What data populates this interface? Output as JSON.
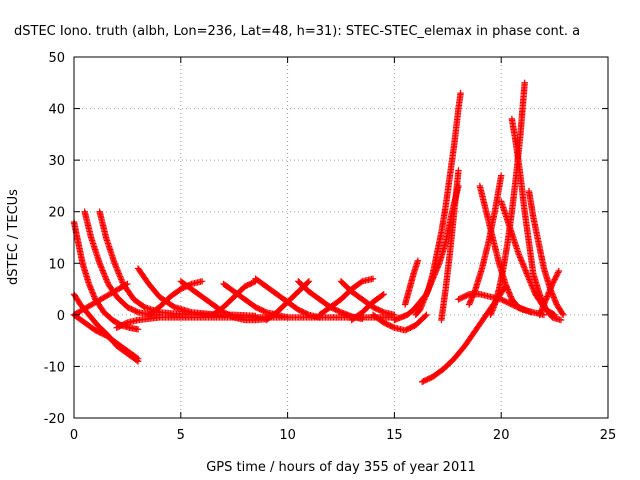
{
  "chart_data": {
    "type": "scatter",
    "title": "dSTEC Iono. truth (albh, Lon=236, Lat=48, h=31): STEC-STEC_elemax in phase cont. a",
    "xlabel": "GPS time / hours of day 355 of year 2011",
    "ylabel": "dSTEC  / TECUs",
    "xlim": [
      0,
      25
    ],
    "ylim": [
      -20,
      50
    ],
    "xticks": [
      0,
      5,
      10,
      15,
      20,
      25
    ],
    "yticks": [
      -20,
      -10,
      0,
      10,
      20,
      30,
      40,
      50
    ],
    "xtick_labels": [
      "0",
      "5",
      "10",
      "15",
      "20",
      "25"
    ],
    "ytick_labels": [
      "-20",
      "-10",
      "0",
      "10",
      "20",
      "30",
      "40",
      "50"
    ],
    "grid": true,
    "marker": "plus",
    "color": "#ff0000",
    "series": [
      {
        "x": [
          0.0,
          0.2,
          0.4,
          0.7,
          1.0,
          1.4,
          1.8,
          2.2,
          2.6,
          3.0
        ],
        "y": [
          18,
          14,
          10,
          6,
          3,
          0.5,
          -1,
          -2,
          -2.5,
          -2.8
        ]
      },
      {
        "x": [
          0.0,
          0.3,
          0.7,
          1.1,
          1.6,
          2.0,
          2.5,
          3.0
        ],
        "y": [
          4,
          2,
          0,
          -2,
          -4,
          -6,
          -7.5,
          -9
        ]
      },
      {
        "x": [
          0.0,
          0.5,
          1.0,
          1.5,
          2.0,
          2.5,
          3.0
        ],
        "y": [
          0,
          -1.5,
          -3,
          -4,
          -5.5,
          -7,
          -8.5
        ]
      },
      {
        "x": [
          0.5,
          0.8,
          1.2,
          1.6,
          2.0,
          2.5,
          3.0,
          3.5,
          4.0
        ],
        "y": [
          20,
          15,
          10,
          6,
          3.5,
          1.5,
          0.5,
          0.1,
          0
        ]
      },
      {
        "x": [
          1.2,
          1.5,
          1.9,
          2.3,
          2.8,
          3.3,
          4.0,
          4.8,
          5.5,
          6.5
        ],
        "y": [
          20,
          15,
          10,
          6,
          3,
          1.5,
          0.5,
          0.2,
          0.1,
          0
        ]
      },
      {
        "x": [
          0.0,
          0.5,
          1.0,
          1.5,
          2.0,
          2.5
        ],
        "y": [
          0,
          1.2,
          2.4,
          3.6,
          4.8,
          6
        ]
      },
      {
        "x": [
          3.0,
          3.5,
          4.0,
          4.7,
          5.5,
          6.5,
          7.5,
          8.5
        ],
        "y": [
          9,
          6,
          3.5,
          1.5,
          0.5,
          0.1,
          0,
          -0.2
        ]
      },
      {
        "x": [
          3.5,
          4.0,
          4.5,
          5.0,
          5.5,
          6.0
        ],
        "y": [
          0,
          1.5,
          3.5,
          5,
          6,
          6.5
        ]
      },
      {
        "x": [
          5.0,
          5.5,
          6.0,
          6.5,
          7.0,
          7.5,
          8.0,
          8.5,
          9.0
        ],
        "y": [
          6.5,
          5,
          3.5,
          2,
          0.5,
          -0.5,
          -1,
          -1,
          -0.8
        ]
      },
      {
        "x": [
          6.5,
          7.0,
          7.5,
          8.0,
          8.5
        ],
        "y": [
          0,
          1.5,
          3.5,
          5.5,
          6.5
        ]
      },
      {
        "x": [
          7.0,
          7.5,
          8.0,
          8.5,
          9.0,
          9.5,
          10.0
        ],
        "y": [
          6,
          4.5,
          3,
          1.5,
          0.5,
          0,
          -0.5
        ]
      },
      {
        "x": [
          8.5,
          9.0,
          9.5,
          10.0,
          10.5,
          11.0,
          11.5
        ],
        "y": [
          7,
          5.5,
          4,
          2.5,
          1,
          0,
          -0.5
        ]
      },
      {
        "x": [
          9.0,
          9.5,
          10.0,
          10.5,
          11.0
        ],
        "y": [
          -1,
          0.5,
          2.5,
          4.5,
          6.5
        ]
      },
      {
        "x": [
          10.5,
          11.0,
          11.5,
          12.0,
          12.5,
          13.0,
          13.5
        ],
        "y": [
          6.5,
          4.5,
          3,
          1.5,
          0.5,
          -0.3,
          -0.8
        ]
      },
      {
        "x": [
          11.5,
          12.0,
          12.5,
          13.0,
          13.5,
          14.0
        ],
        "y": [
          0,
          1.5,
          3,
          5,
          6.5,
          7
        ]
      },
      {
        "x": [
          12.5,
          13.0,
          13.5,
          14.0,
          14.5,
          15.0
        ],
        "y": [
          6.5,
          4.5,
          3,
          1.5,
          0.5,
          0
        ]
      },
      {
        "x": [
          13.0,
          13.5,
          14.0,
          14.5
        ],
        "y": [
          -1,
          0.5,
          2.5,
          4
        ]
      },
      {
        "x": [
          14.0,
          14.5,
          15.0,
          15.5,
          16.0,
          16.5
        ],
        "y": [
          0,
          -1.5,
          -2.5,
          -3,
          -2,
          0
        ]
      },
      {
        "x": [
          2.0,
          2.5,
          3.0,
          4.0,
          5.0,
          6.0,
          8.0,
          10.0,
          12.0,
          14.0,
          15.0
        ],
        "y": [
          -2.5,
          -1.5,
          -1,
          -0.5,
          -0.5,
          -0.5,
          -0.5,
          -0.5,
          -0.5,
          -0.5,
          -0.5
        ]
      },
      {
        "x": [
          15.0,
          15.3,
          15.6,
          15.9,
          16.2,
          16.5,
          16.8,
          17.1,
          17.4,
          17.7,
          18.0
        ],
        "y": [
          -1,
          -0.5,
          0,
          1,
          2.5,
          4,
          7,
          10,
          14,
          20,
          25
        ]
      },
      {
        "x": [
          15.5,
          15.7,
          15.9,
          16.1
        ],
        "y": [
          2,
          5,
          8,
          10.5
        ]
      },
      {
        "x": [
          16.0,
          16.2,
          16.4,
          16.6,
          16.8,
          17.0,
          17.2,
          17.4,
          17.6,
          17.8,
          18.0,
          18.1
        ],
        "y": [
          0,
          1,
          3,
          5,
          8,
          12,
          16,
          21,
          27,
          33,
          40,
          43
        ]
      },
      {
        "x": [
          17.2,
          17.4,
          17.6,
          17.8,
          18.0
        ],
        "y": [
          -1,
          5,
          12,
          20,
          28
        ]
      },
      {
        "x": [
          16.3,
          16.8,
          17.3,
          17.8,
          18.3,
          18.8,
          19.3,
          19.8,
          20.2
        ],
        "y": [
          -13,
          -12,
          -10.5,
          -8.5,
          -6,
          -3,
          0,
          3,
          5.5
        ]
      },
      {
        "x": [
          18.5,
          18.8,
          19.1,
          19.4,
          19.7,
          20.0
        ],
        "y": [
          2,
          5,
          9,
          14,
          20,
          27
        ]
      },
      {
        "x": [
          19.5,
          19.7,
          19.9,
          20.1,
          20.3,
          20.5,
          20.7,
          20.9,
          21.0,
          21.1
        ],
        "y": [
          0,
          2,
          5,
          9,
          14,
          20,
          27,
          35,
          40,
          45
        ]
      },
      {
        "x": [
          19.0,
          19.3,
          19.6,
          19.9,
          20.2,
          20.5,
          20.8,
          21.1,
          21.4
        ],
        "y": [
          25,
          20,
          15,
          10,
          6,
          3,
          1.5,
          1,
          0.5
        ]
      },
      {
        "x": [
          20.5,
          20.7,
          20.9,
          21.1,
          21.3,
          21.5,
          21.8,
          22.1,
          22.5
        ],
        "y": [
          38,
          33,
          27,
          20,
          14,
          8,
          4,
          1,
          0
        ]
      },
      {
        "x": [
          21.3,
          21.5,
          21.8,
          22.0,
          22.3,
          22.6,
          22.9
        ],
        "y": [
          24,
          19,
          13,
          9,
          5,
          2,
          0
        ]
      },
      {
        "x": [
          20.0,
          20.4,
          20.8,
          21.2,
          21.6,
          22.0,
          22.4,
          22.8
        ],
        "y": [
          22,
          17,
          12,
          8,
          4,
          1.5,
          -0.5,
          -1
        ]
      },
      {
        "x": [
          21.8,
          22.1,
          22.4,
          22.7
        ],
        "y": [
          0,
          3,
          6,
          8.5
        ]
      },
      {
        "x": [
          18.0,
          18.5,
          19.0,
          19.5,
          20.0,
          20.5,
          21.0,
          21.5,
          22.0
        ],
        "y": [
          3,
          4,
          4,
          3.5,
          3,
          2,
          1,
          0.5,
          0
        ]
      }
    ]
  }
}
